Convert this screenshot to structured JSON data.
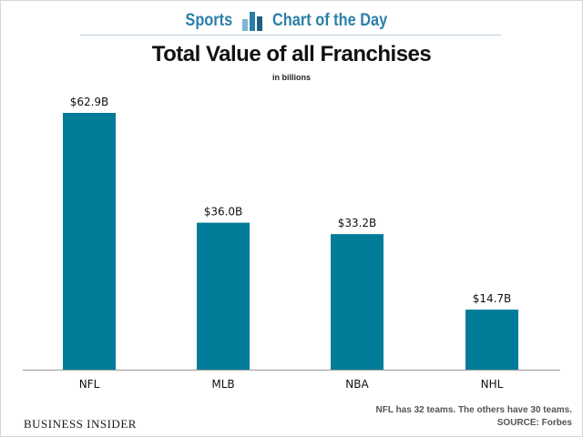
{
  "header": {
    "left_label": "Sports",
    "right_label": "Chart of the Day",
    "icon": "bar-chart-icon",
    "accent_color": "#2a7fa8"
  },
  "footer": {
    "brand": "BUSINESS INSIDER",
    "note": "NFL has 32 teams. The others have 30 teams.",
    "source": "SOURCE: Forbes"
  },
  "chart_data": {
    "type": "bar",
    "title": "Total Value of all Franchises",
    "subtitle": "in billions",
    "categories": [
      "NFL",
      "MLB",
      "NBA",
      "NHL"
    ],
    "values": [
      62.9,
      36.0,
      33.2,
      14.7
    ],
    "value_labels": [
      "$62.9B",
      "$36.0B",
      "$33.2B",
      "$14.7B"
    ],
    "ylim": [
      0,
      70
    ],
    "xlabel": "",
    "ylabel": "",
    "grid": false,
    "bar_color": "#007c99"
  }
}
